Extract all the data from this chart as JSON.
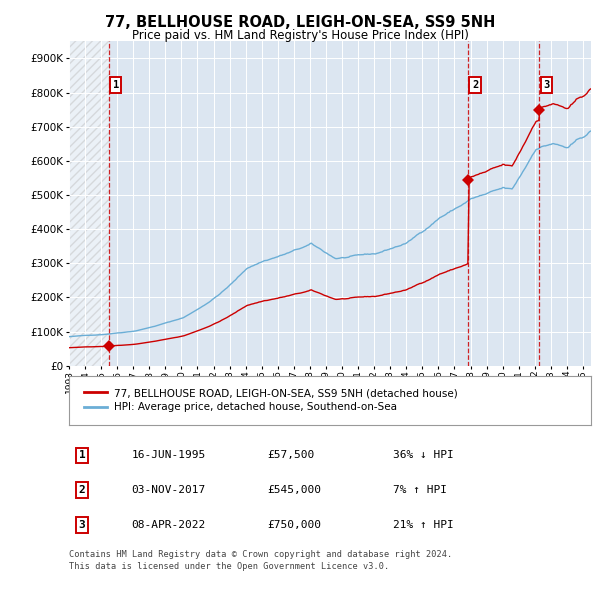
{
  "title": "77, BELLHOUSE ROAD, LEIGH-ON-SEA, SS9 5NH",
  "subtitle": "Price paid vs. HM Land Registry's House Price Index (HPI)",
  "bg_color": "#dce6f1",
  "hpi_color": "#6baed6",
  "price_color": "#cc0000",
  "sale1_date": 1995.46,
  "sale1_price": 57500,
  "sale2_date": 2017.84,
  "sale2_price": 545000,
  "sale3_date": 2022.27,
  "sale3_price": 750000,
  "legend1": "77, BELLHOUSE ROAD, LEIGH-ON-SEA, SS9 5NH (detached house)",
  "legend2": "HPI: Average price, detached house, Southend-on-Sea",
  "table_data": [
    [
      "1",
      "16-JUN-1995",
      "£57,500",
      "36% ↓ HPI"
    ],
    [
      "2",
      "03-NOV-2017",
      "£545,000",
      "7% ↑ HPI"
    ],
    [
      "3",
      "08-APR-2022",
      "£750,000",
      "21% ↑ HPI"
    ]
  ],
  "footer": "Contains HM Land Registry data © Crown copyright and database right 2024.\nThis data is licensed under the Open Government Licence v3.0.",
  "ylim_max": 950000,
  "xlim_min": 1993.0,
  "xlim_max": 2025.5
}
